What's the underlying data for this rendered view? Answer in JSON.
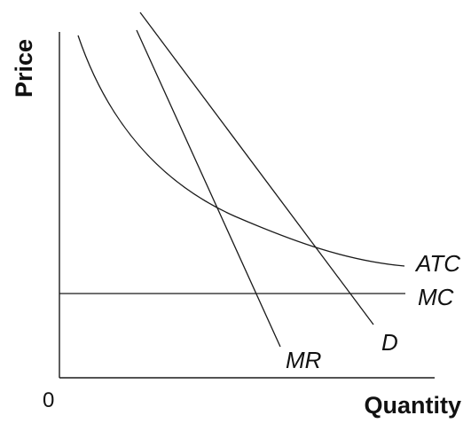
{
  "chart_data": {
    "type": "line",
    "title": "",
    "xlabel": "Quantity",
    "ylabel": "Price",
    "origin_label": "0",
    "grid": false,
    "legend": "none",
    "series": [
      {
        "name": "ATC",
        "shape": "decreasing-convex-curve"
      },
      {
        "name": "MC",
        "shape": "horizontal-line"
      },
      {
        "name": "D",
        "shape": "downward-sloping-line"
      },
      {
        "name": "MR",
        "shape": "downward-sloping-line-steeper-than-demand"
      }
    ],
    "colors": {
      "line": "#1a1a1a",
      "text": "#111111",
      "background": "#ffffff"
    }
  }
}
